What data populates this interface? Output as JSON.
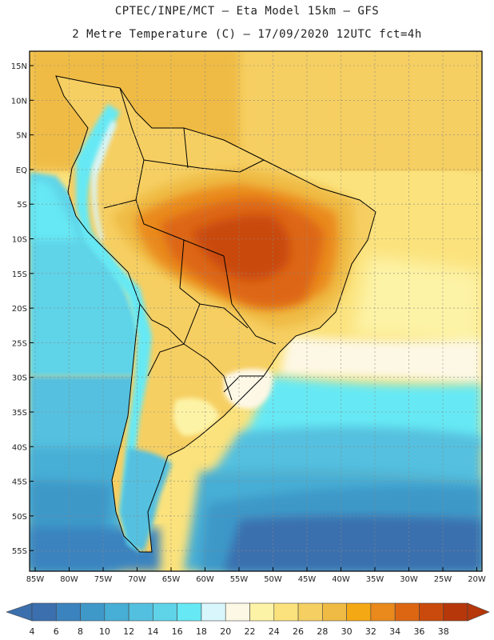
{
  "header": {
    "line1": "CPTEC/INPE/MCT –  Eta Model 15km – GFS",
    "line2": "2 Metre Temperature (C) – 17/09/2020 12UTC fct=4h"
  },
  "map": {
    "lat_labels": [
      "15N",
      "10N",
      "5N",
      "EQ",
      "5S",
      "10S",
      "15S",
      "20S",
      "25S",
      "30S",
      "35S",
      "40S",
      "45S",
      "50S",
      "55S"
    ],
    "lon_labels": [
      "85W",
      "80W",
      "75W",
      "70W",
      "65W",
      "60W",
      "55W",
      "50W",
      "45W",
      "40W",
      "35W",
      "30W",
      "25W",
      "20W"
    ]
  },
  "colorbar": {
    "labels": [
      "4",
      "6",
      "8",
      "10",
      "12",
      "14",
      "16",
      "18",
      "20",
      "22",
      "24",
      "26",
      "28",
      "30",
      "32",
      "34",
      "36",
      "38"
    ],
    "colors": [
      "#3b6fae",
      "#3a83bf",
      "#3e98c8",
      "#47aed5",
      "#54c0df",
      "#5fd3e8",
      "#66e9f4",
      "#d8f6fb",
      "#fdf8e6",
      "#fdf3a6",
      "#fbe27c",
      "#f6cf62",
      "#efbb45",
      "#f3a814",
      "#ea8a1d",
      "#dd6612",
      "#c94a0c",
      "#b5370a"
    ]
  }
}
